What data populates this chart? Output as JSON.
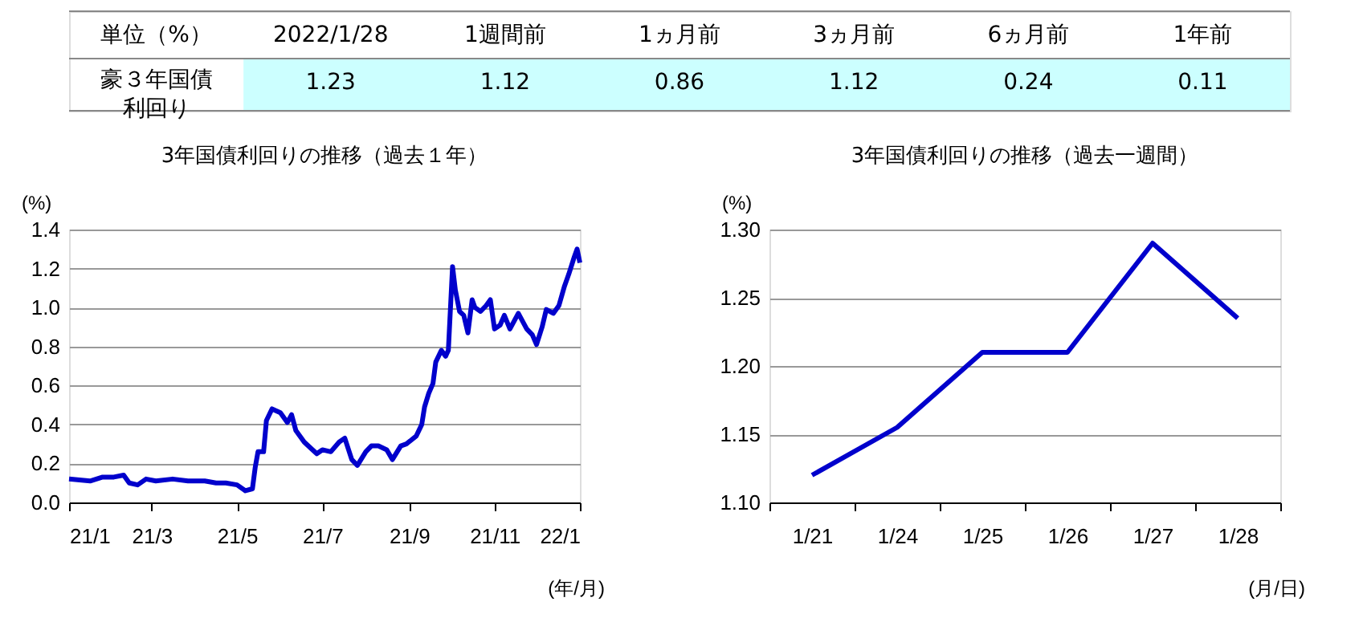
{
  "chart_data": [
    {
      "type": "other",
      "xlabel": "単位（%）",
      "ylabel": "豪３年国債利回り",
      "categories": [
        "2022/1/28",
        "1週間前",
        "1ヵ月前",
        "3ヵ月前",
        "6ヵ月前",
        "1年前"
      ],
      "values": [
        1.23,
        1.12,
        0.86,
        1.12,
        0.24,
        0.11
      ],
      "data_labels": true
    },
    {
      "type": "line",
      "title": "3年国債利回りの推移（過去１年）",
      "xlabel": "(年/月)",
      "ylabel": "(%)",
      "grid": "y",
      "line_style": "solid",
      "xlim": [
        "2021-01-28",
        "2022-01-28"
      ],
      "xticks": [
        {
          "value": "2021-01-28",
          "label": "21/1"
        },
        {
          "value": "2021-03-28",
          "label": "21/3"
        },
        {
          "value": "2021-05-28",
          "label": "21/5"
        },
        {
          "value": "2021-07-28",
          "label": "21/7"
        },
        {
          "value": "2021-09-28",
          "label": "21/9"
        },
        {
          "value": "2021-11-28",
          "label": "21/11"
        },
        {
          "value": "2022-01-28",
          "label": "22/1"
        }
      ],
      "ylim": [
        0,
        1.4
      ],
      "yticks": [
        {
          "value": 0,
          "label": "0.0"
        },
        0.2,
        0.4,
        0.6,
        0.8,
        {
          "value": 1,
          "label": "1.0"
        },
        1.2,
        1.4
      ],
      "x": [
        "2021-01-28",
        "2021-02-12",
        "2021-02-21",
        "2021-03-01",
        "2021-03-08",
        "2021-03-12",
        "2021-03-18",
        "2021-03-24",
        "2021-03-31",
        "2021-04-12",
        "2021-04-23",
        "2021-05-05",
        "2021-05-13",
        "2021-05-20",
        "2021-05-28",
        "2021-06-03",
        "2021-06-08",
        "2021-06-10",
        "2021-06-12",
        "2021-06-16",
        "2021-06-18",
        "2021-06-22",
        "2021-06-28",
        "2021-07-03",
        "2021-07-06",
        "2021-07-09",
        "2021-07-15",
        "2021-07-21",
        "2021-07-24",
        "2021-07-28",
        "2021-08-03",
        "2021-08-09",
        "2021-08-13",
        "2021-08-18",
        "2021-08-22",
        "2021-08-28",
        "2021-09-01",
        "2021-09-06",
        "2021-09-12",
        "2021-09-16",
        "2021-09-22",
        "2021-09-26",
        "2021-10-03",
        "2021-10-07",
        "2021-10-09",
        "2021-10-12",
        "2021-10-15",
        "2021-10-17",
        "2021-10-21",
        "2021-10-24",
        "2021-10-26",
        "2021-10-29",
        "2021-10-31",
        "2021-11-03",
        "2021-11-06",
        "2021-11-09",
        "2021-11-12",
        "2021-11-14",
        "2021-11-18",
        "2021-11-22",
        "2021-11-25",
        "2021-11-28",
        "2021-12-02",
        "2021-12-05",
        "2021-12-09",
        "2021-12-15",
        "2021-12-21",
        "2021-12-25",
        "2021-12-28",
        "2022-01-01",
        "2022-01-04",
        "2022-01-09",
        "2022-01-13",
        "2022-01-17",
        "2022-01-20",
        "2022-01-24",
        "2022-01-26",
        "2022-01-28"
      ],
      "series": [
        {
          "color": "#0000cc",
          "values": [
            0.12,
            0.11,
            0.13,
            0.13,
            0.14,
            0.1,
            0.09,
            0.12,
            0.11,
            0.12,
            0.11,
            0.11,
            0.1,
            0.1,
            0.09,
            0.06,
            0.07,
            0.18,
            0.26,
            0.26,
            0.42,
            0.48,
            0.46,
            0.41,
            0.45,
            0.37,
            0.31,
            0.27,
            0.25,
            0.27,
            0.26,
            0.31,
            0.33,
            0.22,
            0.19,
            0.26,
            0.29,
            0.29,
            0.27,
            0.22,
            0.29,
            0.3,
            0.34,
            0.4,
            0.49,
            0.56,
            0.61,
            0.72,
            0.78,
            0.75,
            0.78,
            1.21,
            1.09,
            0.98,
            0.96,
            0.87,
            1.04,
            1.0,
            0.98,
            1.01,
            1.04,
            0.89,
            0.91,
            0.96,
            0.89,
            0.97,
            0.89,
            0.86,
            0.81,
            0.9,
            0.99,
            0.97,
            1.01,
            1.11,
            1.17,
            1.26,
            1.3,
            1.23
          ]
        }
      ]
    },
    {
      "type": "line",
      "title": "3年国債利回りの推移（過去一週間）",
      "xlabel": "(月/日)",
      "ylabel": "(%)",
      "grid": "y",
      "line_style": "solid",
      "categories": [
        "1/21",
        "1/24",
        "1/25",
        "1/26",
        "1/27",
        "1/28"
      ],
      "ylim": [
        1.1,
        1.3
      ],
      "yticks": [
        {
          "value": 1.1,
          "label": "1.10"
        },
        1.15,
        {
          "value": 1.2,
          "label": "1.20"
        },
        1.25,
        {
          "value": 1.3,
          "label": "1.30"
        }
      ],
      "series": [
        {
          "color": "#0000cc",
          "values": [
            1.12,
            1.155,
            1.21,
            1.21,
            1.29,
            1.235
          ]
        }
      ]
    }
  ]
}
